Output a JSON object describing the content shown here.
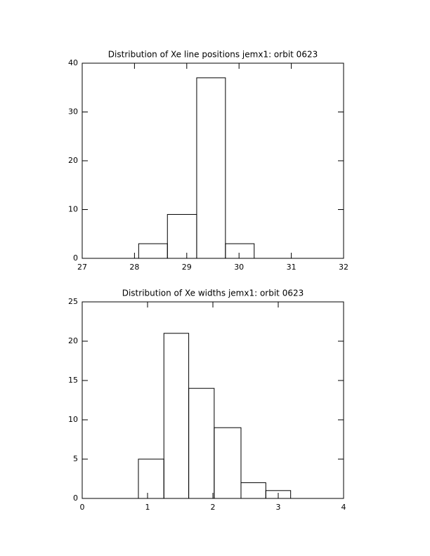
{
  "chart_data": [
    {
      "type": "histogram",
      "title": "Distribution of Xe line positions jemx1: orbit 0623",
      "bins": [
        28.08,
        28.63,
        29.19,
        29.74,
        30.29
      ],
      "values": [
        3,
        9,
        37,
        3
      ],
      "xlim": [
        27,
        32
      ],
      "xticks": [
        27,
        28,
        29,
        30,
        31,
        32
      ],
      "ylim": [
        0,
        40
      ],
      "yticks": [
        0,
        10,
        20,
        30,
        40
      ],
      "color": "#000000"
    },
    {
      "type": "histogram",
      "title": "Distribution of Xe widths jemx1: orbit 0623",
      "bins": [
        0.86,
        1.25,
        1.63,
        2.02,
        2.43,
        2.81,
        3.19
      ],
      "values": [
        5,
        21,
        14,
        9,
        2,
        1
      ],
      "xlim": [
        0,
        4
      ],
      "xticks": [
        0,
        1,
        2,
        3,
        4
      ],
      "ylim": [
        0,
        25
      ],
      "yticks": [
        0,
        5,
        10,
        15,
        20,
        25
      ],
      "color": "#000000"
    }
  ]
}
